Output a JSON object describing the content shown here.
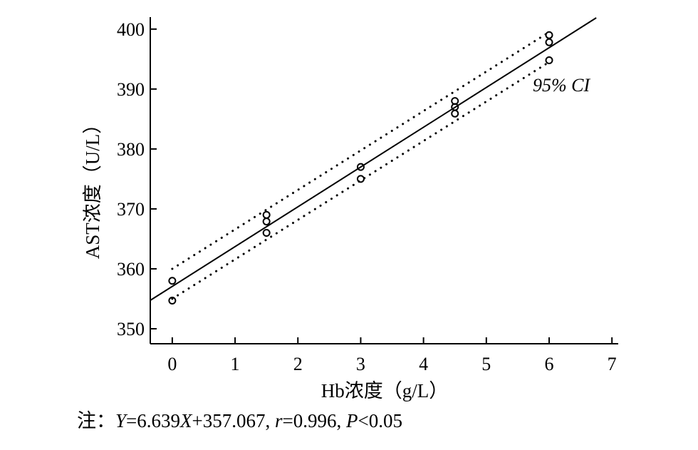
{
  "chart_data": {
    "type": "scatter",
    "xlabel": "Hb浓度（g/L）",
    "ylabel": "AST浓度（U/L）",
    "xlim": [
      -0.35,
      7.1
    ],
    "ylim": [
      347.5,
      402
    ],
    "xticks": [
      0,
      1,
      2,
      3,
      4,
      5,
      6,
      7
    ],
    "yticks": [
      350,
      360,
      370,
      380,
      390,
      400
    ],
    "points": [
      {
        "x": 0,
        "y": 358
      },
      {
        "x": 0,
        "y": 354.7
      },
      {
        "x": 1.5,
        "y": 369
      },
      {
        "x": 1.5,
        "y": 367.9
      },
      {
        "x": 1.5,
        "y": 366
      },
      {
        "x": 3,
        "y": 377
      },
      {
        "x": 3,
        "y": 375
      },
      {
        "x": 4.5,
        "y": 388
      },
      {
        "x": 4.5,
        "y": 387
      },
      {
        "x": 4.5,
        "y": 385.9
      },
      {
        "x": 6,
        "y": 399
      },
      {
        "x": 6,
        "y": 397.8
      },
      {
        "x": 6,
        "y": 394.8
      }
    ],
    "regression": {
      "slope": 6.639,
      "intercept": 357.067,
      "x_range": [
        -0.35,
        6.75
      ]
    },
    "ci_upper": {
      "x": [
        0,
        6
      ],
      "y": [
        360,
        399.5
      ]
    },
    "ci_lower": {
      "x": [
        0,
        6
      ],
      "y": [
        355,
        394.5
      ]
    },
    "ci_label": "95% CI",
    "grid": false,
    "legend": "none"
  },
  "note": {
    "prefix": "注：",
    "y_var": "Y",
    "eq_mid": "=6.639",
    "x_var": "X",
    "eq_end": "+357.067, ",
    "r_var": "r",
    "r_val": "=0.996, ",
    "p_var": "P",
    "p_val": "<0.05"
  }
}
